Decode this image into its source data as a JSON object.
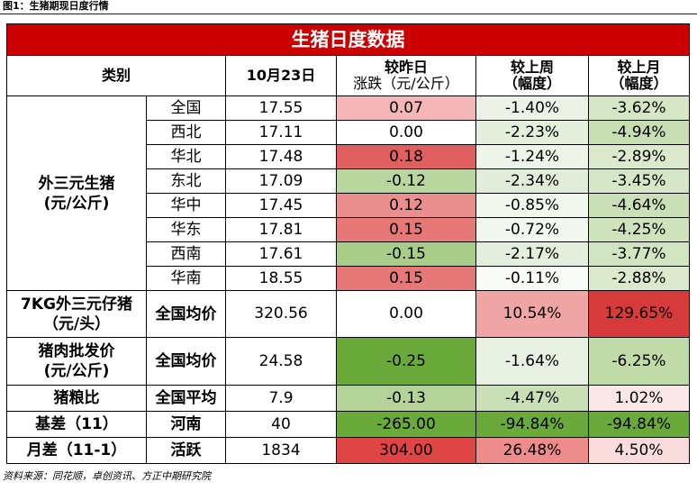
{
  "figure_title": "图1：生猪期现日度行情",
  "source": "资料来源：同花顺，卓创资讯、方正中期研究院",
  "table": {
    "banner": "生猪日度数据",
    "headers": {
      "category": "类别",
      "date": "10月23日",
      "day_change_line1": "较昨日",
      "day_change_line2": "涨跌（元/公斤）",
      "week_change_line1": "较上周",
      "week_change_line2": "（幅度）",
      "month_change_line1": "较上月",
      "month_change_line2": "（幅度）"
    },
    "group_hog": {
      "label_line1": "外三元生猪",
      "label_line2": "(元/公斤)"
    },
    "rows": [
      {
        "region": "全国",
        "price": "17.55",
        "day": "0.07",
        "week": "-1.40%",
        "month": "-3.62%",
        "day_bg": "#f4b6b6",
        "week_bg": "#ecf3e6",
        "month_bg": "#d4e6c4"
      },
      {
        "region": "西北",
        "price": "17.11",
        "day": "0.00",
        "week": "-2.23%",
        "month": "-4.94%",
        "day_bg": "#ffffff",
        "week_bg": "#e3eedb",
        "month_bg": "#c7deb2"
      },
      {
        "region": "华北",
        "price": "17.48",
        "day": "0.18",
        "week": "-1.24%",
        "month": "-2.89%",
        "day_bg": "#e06060",
        "week_bg": "#eef4e8",
        "month_bg": "#dbeacd"
      },
      {
        "region": "东北",
        "price": "17.09",
        "day": "-0.12",
        "week": "-2.34%",
        "month": "-3.45%",
        "day_bg": "#b8d69e",
        "week_bg": "#e2edd9",
        "month_bg": "#d6e7c7"
      },
      {
        "region": "华中",
        "price": "17.45",
        "day": "0.12",
        "week": "-0.85%",
        "month": "-4.64%",
        "day_bg": "#eb8e8e",
        "week_bg": "#f2f7ee",
        "month_bg": "#cae0b6"
      },
      {
        "region": "华东",
        "price": "17.81",
        "day": "0.15",
        "week": "-0.72%",
        "month": "-4.25%",
        "day_bg": "#e67878",
        "week_bg": "#f3f8ef",
        "month_bg": "#cee3bc"
      },
      {
        "region": "西南",
        "price": "17.61",
        "day": "-0.15",
        "week": "-2.17%",
        "month": "-3.77%",
        "day_bg": "#a7cd88",
        "week_bg": "#e4eedc",
        "month_bg": "#d2e5c1"
      },
      {
        "region": "华南",
        "price": "18.55",
        "day": "0.15",
        "week": "-0.11%",
        "month": "-2.88%",
        "day_bg": "#e67878",
        "week_bg": "#f8fbf6",
        "month_bg": "#dbeacd"
      }
    ],
    "piglet": {
      "label_line1": "7KG外三元仔猪",
      "label_line2": "（元/头）",
      "region": "全国均价",
      "price": "320.56",
      "day": "0.00",
      "week": "10.54%",
      "month": "129.65%",
      "day_bg": "#ffffff",
      "week_bg": "#f0a5a5",
      "month_bg": "#d63a3a"
    },
    "pork": {
      "label_line1": "猪肉批发价",
      "label_line2": "(元/公斤)",
      "region": "全国均价",
      "price": "24.58",
      "day": "-0.25",
      "week": "-1.64%",
      "month": "-6.25%",
      "day_bg": "#6aaa3a",
      "week_bg": "#e9f1e2",
      "month_bg": "#c0daa8"
    },
    "grain_ratio": {
      "label": "猪粮比",
      "region": "全国平均",
      "price": "7.9",
      "day": "-0.13",
      "week": "-4.47%",
      "month": "1.02%",
      "day_bg": "#b3d398",
      "week_bg": "#c9dfb5",
      "month_bg": "#fbe7e7"
    },
    "basis": {
      "label": "基差（11）",
      "region": "河南",
      "price": "40",
      "day": "-265.00",
      "week": "-94.84%",
      "month": "-94.84%",
      "day_bg": "#6aaa3a",
      "week_bg": "#6aaa3a",
      "month_bg": "#6aaa3a"
    },
    "spread": {
      "label": "月差（11-1）",
      "region": "活跃",
      "price": "1834",
      "day": "304.00",
      "week": "26.48%",
      "month": "4.50%",
      "day_bg": "#e04545",
      "week_bg": "#ee8c8c",
      "month_bg": "#fadcdc"
    }
  }
}
